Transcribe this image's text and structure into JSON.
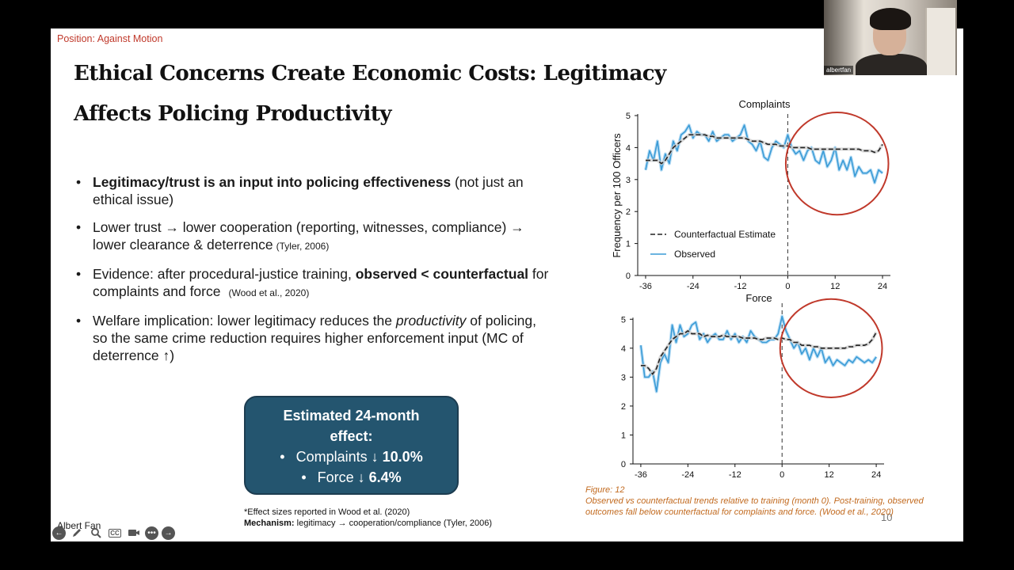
{
  "slide": {
    "position_label": "Position: Against Motion",
    "title_line1": "Ethical Concerns Create Economic Costs: Legitimacy",
    "title_line2": "Affects Policing Productivity",
    "bullets": {
      "b1_bold": "Legitimacy/trust is an input into policing effectiveness",
      "b1_rest": " (not just an ethical issue)",
      "b2_text": "Lower trust → lower cooperation (reporting, witnesses, compliance) → lower clearance & deterrence",
      "b2_cite": "(Tyler, 2006)",
      "b3_pre": "Evidence: after procedural-justice training, ",
      "b3_bold": "observed < counterfactual",
      "b3_post": " for complaints and force",
      "b3_cite": "(Wood et al., 2020)",
      "b4_pre": "Welfare implication: lower legitimacy reduces the ",
      "b4_italic": "productivity",
      "b4_post": " of policing, so the same crime reduction requires higher enforcement input (MC of deterrence ↑)"
    },
    "effect_box": {
      "heading": "Estimated 24-month effect:",
      "bullet1_label": "Complaints ↓ ",
      "bullet1_value": "10.0%",
      "bullet2_label": "Force ↓ ",
      "bullet2_value": "6.4%"
    },
    "footnote": {
      "line1": "*Effect sizes reported in Wood et al. (2020)",
      "line2_bold": "Mechanism:",
      "line2_rest": " legitimacy → cooperation/compliance (Tyler, 2006)"
    },
    "author": "Albert Fan",
    "page_number": "10",
    "caption": {
      "label": "Figure: 12",
      "text": "Observed vs counterfactual trends relative to training (month 0). Post-training, observed outcomes fall below counterfactual for complaints and force.",
      "cite": " (Wood et al., 2020)"
    }
  },
  "webcam": {
    "name": "albertfan"
  },
  "toolbar": {
    "icons": [
      "back-arrow-icon",
      "pen-icon",
      "zoom-icon",
      "captions-icon",
      "camera-icon",
      "more-icon",
      "forward-arrow-icon"
    ],
    "cc_label": "CC"
  },
  "colors": {
    "accent_red": "#c0392b",
    "box_fill": "#24556f",
    "observed_line": "#3a9bd6",
    "counterfactual_line": "#222222",
    "highlight_circle": "#c0392b",
    "caption": "#c26a1f"
  },
  "chart_data": [
    {
      "type": "line",
      "title": "Complaints",
      "xlabel": "",
      "ylabel": "Frequency per 100 Officers",
      "xlim": [
        -38,
        26
      ],
      "ylim": [
        0,
        5
      ],
      "xticks": [
        -36,
        -24,
        -12,
        0,
        12,
        24
      ],
      "yticks": [
        0,
        1,
        2,
        3,
        4,
        5
      ],
      "vline_x": 0,
      "legend": [
        "Counterfactual Estimate",
        "Observed"
      ],
      "legend_position": "lower-left",
      "highlight": {
        "x_center": 12.5,
        "y_center": 3.5,
        "x_radius": 13,
        "y_radius": 1.6
      },
      "series": [
        {
          "name": "Observed",
          "style": "solid",
          "x": [
            -36,
            -35,
            -34,
            -33,
            -32,
            -31,
            -30,
            -29,
            -28,
            -27,
            -26,
            -25,
            -24,
            -23,
            -22,
            -21,
            -20,
            -19,
            -18,
            -17,
            -16,
            -15,
            -14,
            -13,
            -12,
            -11,
            -10,
            -9,
            -8,
            -7,
            -6,
            -5,
            -4,
            -3,
            -2,
            -1,
            0,
            1,
            2,
            3,
            4,
            5,
            6,
            7,
            8,
            9,
            10,
            11,
            12,
            13,
            14,
            15,
            16,
            17,
            18,
            19,
            20,
            21,
            22,
            23,
            24
          ],
          "y": [
            3.3,
            3.9,
            3.6,
            4.2,
            3.3,
            3.8,
            3.5,
            4.2,
            3.9,
            4.4,
            4.5,
            4.7,
            4.3,
            4.5,
            4.4,
            4.4,
            4.2,
            4.5,
            4.2,
            4.3,
            4.4,
            4.4,
            4.2,
            4.3,
            4.4,
            4.7,
            4.2,
            4.1,
            3.9,
            4.2,
            3.7,
            3.6,
            4.0,
            4.2,
            4.1,
            4.0,
            4.4,
            4.0,
            3.8,
            3.9,
            3.6,
            3.9,
            4.0,
            3.6,
            3.5,
            3.9,
            3.4,
            3.6,
            4.0,
            3.3,
            3.6,
            3.3,
            3.7,
            3.1,
            3.4,
            3.2,
            3.2,
            3.3,
            2.9,
            3.3,
            3.2
          ]
        },
        {
          "name": "Counterfactual Estimate",
          "style": "dashed",
          "x": [
            -36,
            -35,
            -34,
            -33,
            -32,
            -31,
            -30,
            -29,
            -28,
            -27,
            -26,
            -25,
            -24,
            -23,
            -22,
            -21,
            -20,
            -19,
            -18,
            -17,
            -16,
            -15,
            -14,
            -13,
            -12,
            -11,
            -10,
            -9,
            -8,
            -7,
            -6,
            -5,
            -4,
            -3,
            -2,
            -1,
            0,
            1,
            2,
            3,
            4,
            5,
            6,
            7,
            8,
            9,
            10,
            11,
            12,
            13,
            14,
            15,
            16,
            17,
            18,
            19,
            20,
            21,
            22,
            23,
            24
          ],
          "y": [
            3.6,
            3.6,
            3.6,
            3.6,
            3.5,
            3.6,
            3.8,
            4.0,
            4.1,
            4.2,
            4.3,
            4.4,
            4.4,
            4.4,
            4.4,
            4.4,
            4.35,
            4.35,
            4.3,
            4.3,
            4.3,
            4.3,
            4.3,
            4.3,
            4.3,
            4.3,
            4.25,
            4.2,
            4.2,
            4.2,
            4.15,
            4.1,
            4.1,
            4.1,
            4.05,
            4.05,
            4.05,
            4.0,
            4.0,
            4.0,
            4.0,
            4.0,
            3.95,
            3.95,
            3.95,
            3.95,
            3.95,
            3.95,
            3.95,
            3.95,
            3.95,
            3.95,
            3.95,
            3.95,
            3.95,
            3.9,
            3.9,
            3.9,
            3.85,
            3.9,
            4.1
          ]
        }
      ]
    },
    {
      "type": "line",
      "title": "Force",
      "xlabel": "",
      "ylabel": "",
      "xlim": [
        -38,
        26
      ],
      "ylim": [
        0,
        5.5
      ],
      "xticks": [
        -36,
        -24,
        -12,
        0,
        12,
        24
      ],
      "yticks": [
        0,
        1,
        2,
        3,
        4,
        5
      ],
      "vline_x": 0,
      "highlight": {
        "x_center": 12.5,
        "y_center": 4.0,
        "x_radius": 13,
        "y_radius": 1.7
      },
      "series": [
        {
          "name": "Observed",
          "style": "solid",
          "x": [
            -36,
            -35,
            -34,
            -33,
            -32,
            -31,
            -30,
            -29,
            -28,
            -27,
            -26,
            -25,
            -24,
            -23,
            -22,
            -21,
            -20,
            -19,
            -18,
            -17,
            -16,
            -15,
            -14,
            -13,
            -12,
            -11,
            -10,
            -9,
            -8,
            -7,
            -6,
            -5,
            -4,
            -3,
            -2,
            -1,
            0,
            1,
            2,
            3,
            4,
            5,
            6,
            7,
            8,
            9,
            10,
            11,
            12,
            13,
            14,
            15,
            16,
            17,
            18,
            19,
            20,
            21,
            22,
            23,
            24
          ],
          "y": [
            4.1,
            3.0,
            3.0,
            3.2,
            2.5,
            3.5,
            3.8,
            3.5,
            4.8,
            4.2,
            4.8,
            4.4,
            4.5,
            4.8,
            4.9,
            4.3,
            4.5,
            4.2,
            4.4,
            4.5,
            4.3,
            4.3,
            4.6,
            4.3,
            4.5,
            4.2,
            4.4,
            4.2,
            4.6,
            4.4,
            4.3,
            4.2,
            4.2,
            4.3,
            4.3,
            4.5,
            5.1,
            4.6,
            4.3,
            4.0,
            4.2,
            3.8,
            4.0,
            3.6,
            4.0,
            3.7,
            4.0,
            3.5,
            3.7,
            3.4,
            3.6,
            3.5,
            3.4,
            3.6,
            3.5,
            3.7,
            3.6,
            3.5,
            3.6,
            3.5,
            3.7
          ]
        },
        {
          "name": "Counterfactual Estimate",
          "style": "dashed",
          "x": [
            -36,
            -35,
            -34,
            -33,
            -32,
            -31,
            -30,
            -29,
            -28,
            -27,
            -26,
            -25,
            -24,
            -23,
            -22,
            -21,
            -20,
            -19,
            -18,
            -17,
            -16,
            -15,
            -14,
            -13,
            -12,
            -11,
            -10,
            -9,
            -8,
            -7,
            -6,
            -5,
            -4,
            -3,
            -2,
            -1,
            0,
            1,
            2,
            3,
            4,
            5,
            6,
            7,
            8,
            9,
            10,
            11,
            12,
            13,
            14,
            15,
            16,
            17,
            18,
            19,
            20,
            21,
            22,
            23,
            24
          ],
          "y": [
            3.4,
            3.4,
            3.3,
            3.1,
            3.3,
            3.7,
            3.9,
            4.1,
            4.3,
            4.4,
            4.5,
            4.5,
            4.6,
            4.5,
            4.5,
            4.5,
            4.4,
            4.45,
            4.4,
            4.4,
            4.4,
            4.45,
            4.4,
            4.4,
            4.4,
            4.4,
            4.35,
            4.35,
            4.35,
            4.35,
            4.3,
            4.3,
            4.35,
            4.35,
            4.35,
            4.3,
            4.35,
            4.3,
            4.3,
            4.2,
            4.2,
            4.1,
            4.1,
            4.1,
            4.05,
            4.05,
            4.0,
            4.0,
            4.0,
            4.0,
            4.0,
            4.0,
            4.0,
            4.05,
            4.05,
            4.1,
            4.1,
            4.1,
            4.15,
            4.3,
            4.55
          ]
        }
      ]
    }
  ]
}
